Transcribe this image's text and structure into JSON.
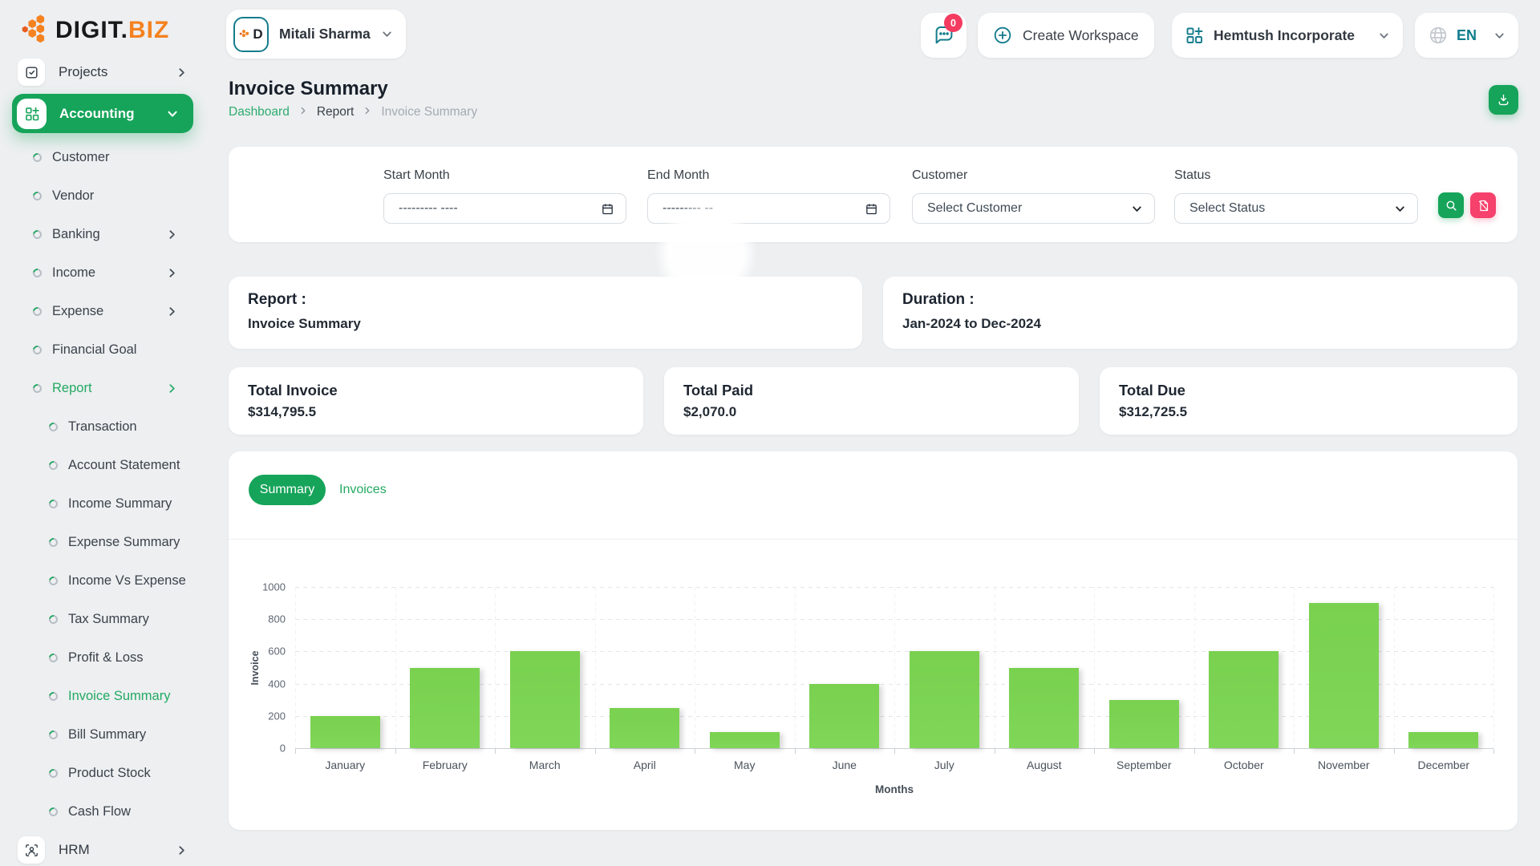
{
  "brand": {
    "name_primary": "DIGIT.",
    "name_accent": "BIZ"
  },
  "header": {
    "user_name": "Mitali Sharma",
    "chat_badge": "0",
    "create_workspace_label": "Create Workspace",
    "workspace_name": "Hemtush Incorporate",
    "language": "EN"
  },
  "sidebar": {
    "projects_label": "Projects",
    "accounting_label": "Accounting",
    "hrm_label": "HRM",
    "items": [
      {
        "label": "Customer",
        "level": 1,
        "chevron": false,
        "active": false
      },
      {
        "label": "Vendor",
        "level": 1,
        "chevron": false,
        "active": false
      },
      {
        "label": "Banking",
        "level": 1,
        "chevron": true,
        "active": false
      },
      {
        "label": "Income",
        "level": 1,
        "chevron": true,
        "active": false
      },
      {
        "label": "Expense",
        "level": 1,
        "chevron": true,
        "active": false
      },
      {
        "label": "Financial Goal",
        "level": 1,
        "chevron": false,
        "active": false
      },
      {
        "label": "Report",
        "level": 1,
        "chevron": true,
        "active": true
      },
      {
        "label": "Transaction",
        "level": 2,
        "chevron": false,
        "active": false
      },
      {
        "label": "Account Statement",
        "level": 2,
        "chevron": false,
        "active": false
      },
      {
        "label": "Income Summary",
        "level": 2,
        "chevron": false,
        "active": false
      },
      {
        "label": "Expense Summary",
        "level": 2,
        "chevron": false,
        "active": false
      },
      {
        "label": "Income Vs Expense",
        "level": 2,
        "chevron": false,
        "active": false
      },
      {
        "label": "Tax Summary",
        "level": 2,
        "chevron": false,
        "active": false
      },
      {
        "label": "Profit & Loss",
        "level": 2,
        "chevron": false,
        "active": false
      },
      {
        "label": "Invoice Summary",
        "level": 2,
        "chevron": false,
        "active": true
      },
      {
        "label": "Bill Summary",
        "level": 2,
        "chevron": false,
        "active": false
      },
      {
        "label": "Product Stock",
        "level": 2,
        "chevron": false,
        "active": false
      },
      {
        "label": "Cash Flow",
        "level": 2,
        "chevron": false,
        "active": false
      }
    ]
  },
  "page": {
    "title": "Invoice Summary",
    "breadcrumb": [
      "Dashboard",
      "Report",
      "Invoice Summary"
    ]
  },
  "filters": {
    "start_month_label": "Start Month",
    "start_month_value": "--------- ----",
    "end_month_label": "End Month",
    "end_month_value": "--------- --",
    "customer_label": "Customer",
    "customer_value": "Select Customer",
    "status_label": "Status",
    "status_value": "Select Status"
  },
  "report_info": {
    "report_label": "Report :",
    "report_value": "Invoice Summary",
    "duration_label": "Duration :",
    "duration_value": "Jan-2024 to Dec-2024"
  },
  "stats": [
    {
      "label": "Total Invoice",
      "value": "$314,795.5"
    },
    {
      "label": "Total Paid",
      "value": "$2,070.0"
    },
    {
      "label": "Total Due",
      "value": "$312,725.5"
    }
  ],
  "tabs": {
    "summary": "Summary",
    "invoices": "Invoices"
  },
  "chart_data": {
    "type": "bar",
    "categories": [
      "January",
      "February",
      "March",
      "April",
      "May",
      "June",
      "July",
      "August",
      "September",
      "October",
      "November",
      "December"
    ],
    "values": [
      200,
      500,
      600,
      250,
      100,
      400,
      600,
      500,
      300,
      600,
      900,
      100
    ],
    "title": "",
    "xlabel": "Months",
    "ylabel": "Invoice",
    "ylim": [
      0,
      1000
    ],
    "yticks": [
      0,
      200,
      400,
      600,
      800,
      1000
    ],
    "grid": true,
    "legend": false,
    "bar_color": "#7bd152"
  },
  "colors": {
    "primary_green": "#16a45a",
    "bar_green": "#7bd152",
    "pink": "#f5416c",
    "teal": "#157c8c",
    "orange": "#f58220"
  }
}
